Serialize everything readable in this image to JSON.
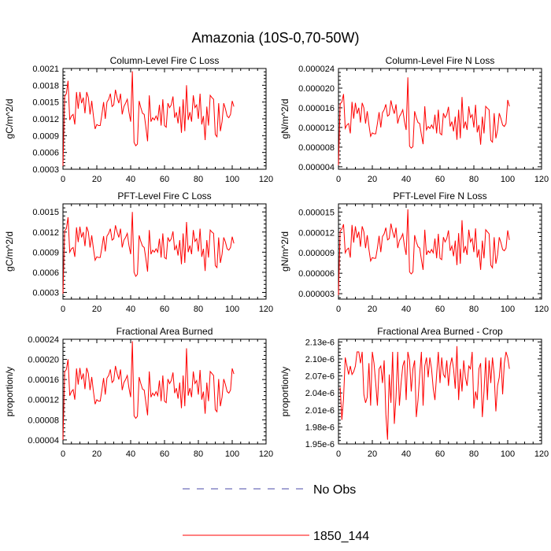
{
  "figure": {
    "title": "Amazonia (10S-0,70-50W)"
  },
  "legend": {
    "obs_label": "No Obs",
    "model_label": "1850_144",
    "obs_color": "#4a4aa8",
    "model_color": "#ff0000"
  },
  "chart_data": [
    {
      "type": "line",
      "title": "Column-Level Fire C Loss",
      "ylabel": "gC/m^2/d",
      "xlim": [
        0,
        120
      ],
      "ylim": [
        0.0003,
        0.0021
      ],
      "xticks": [
        0,
        20,
        40,
        60,
        80,
        100,
        120
      ],
      "yticks": [
        0.0003,
        0.0006,
        0.0009,
        0.0012,
        0.0015,
        0.0018,
        0.0021
      ],
      "ytick_labels": [
        "0.0003",
        "0.0006",
        "0.0009",
        "0.0012",
        "0.0015",
        "0.0018",
        "0.0021"
      ],
      "series": [
        {
          "name": "1850_144",
          "color": "#ff0000",
          "x_start": 0,
          "values": [
            0.00036,
            0.0016,
            0.00165,
            0.00188,
            0.00118,
            0.00125,
            0.00128,
            0.0011,
            0.00168,
            0.00138,
            0.00168,
            0.00148,
            0.00158,
            0.0013,
            0.00168,
            0.00158,
            0.00128,
            0.00152,
            0.00125,
            0.00102,
            0.0011,
            0.00108,
            0.00108,
            0.00128,
            0.0015,
            0.0012,
            0.0015,
            0.00155,
            0.00165,
            0.00142,
            0.00145,
            0.00172,
            0.00158,
            0.00148,
            0.00165,
            0.00128,
            0.00142,
            0.00148,
            0.00155,
            0.00132,
            0.00115,
            0.00205,
            0.00078,
            0.00072,
            0.00075,
            0.00152,
            0.0014,
            0.0013,
            0.00128,
            0.00105,
            0.0008,
            0.00162,
            0.00115,
            0.00122,
            0.00118,
            0.00125,
            0.00118,
            0.00145,
            0.00108,
            0.00155,
            0.00108,
            0.00105,
            0.00148,
            0.0014,
            0.00145,
            0.0016,
            0.00122,
            0.00132,
            0.00112,
            0.00142,
            0.00095,
            0.00155,
            0.00098,
            0.0018,
            0.00118,
            0.00132,
            0.00115,
            0.00162,
            0.0014,
            0.00145,
            0.0012,
            0.00165,
            0.0011,
            0.00125,
            0.00082,
            0.00142,
            0.00108,
            0.00162,
            0.00158,
            0.00155,
            0.00092,
            0.00088,
            0.00148,
            0.00098,
            0.00115,
            0.00148,
            0.00138,
            0.00125,
            0.00122,
            0.00128,
            0.00152,
            0.00142
          ]
        }
      ]
    },
    {
      "type": "line",
      "title": "Column-Level Fire N Loss",
      "ylabel": "gN/m^2/d",
      "xlim": [
        0,
        120
      ],
      "ylim": [
        3.5e-06,
        2.4e-05
      ],
      "xticks": [
        0,
        20,
        40,
        60,
        80,
        100,
        120
      ],
      "yticks": [
        4e-06,
        8e-06,
        1.2e-05,
        1.6e-05,
        2e-05,
        2.4e-05
      ],
      "ytick_labels": [
        "0.000004",
        "0.000008",
        "0.000012",
        "0.000016",
        "0.000020",
        "0.000024"
      ],
      "series": [
        {
          "name": "1850_144",
          "color": "#ff0000",
          "x_start": 0,
          "values": [
            4.3e-06,
            1.68e-05,
            1.72e-05,
            1.88e-05,
            1.18e-05,
            1.25e-05,
            1.28e-05,
            1.08e-05,
            1.72e-05,
            1.38e-05,
            1.7e-05,
            1.48e-05,
            1.6e-05,
            1.3e-05,
            1.7e-05,
            1.6e-05,
            1.28e-05,
            1.53e-05,
            1.25e-05,
            1.02e-05,
            1.09e-05,
            1.07e-05,
            1.07e-05,
            1.28e-05,
            1.51e-05,
            1.2e-05,
            1.5e-05,
            1.56e-05,
            1.67e-05,
            1.43e-05,
            1.46e-05,
            1.75e-05,
            1.59e-05,
            1.48e-05,
            1.67e-05,
            1.28e-05,
            1.42e-05,
            1.48e-05,
            1.56e-05,
            1.32e-05,
            1.15e-05,
            2.22e-05,
            8.2e-06,
            7.8e-06,
            8.1e-06,
            1.53e-05,
            1.4e-05,
            1.3e-05,
            1.28e-05,
            1.05e-05,
            8.6e-06,
            1.63e-05,
            1.15e-05,
            1.22e-05,
            1.18e-05,
            1.25e-05,
            1.18e-05,
            1.46e-05,
            1.08e-05,
            1.56e-05,
            1.08e-05,
            1.05e-05,
            1.49e-05,
            1.4e-05,
            1.46e-05,
            1.62e-05,
            1.22e-05,
            1.32e-05,
            1.12e-05,
            1.42e-05,
            9.5e-06,
            1.56e-05,
            9.8e-06,
            1.82e-05,
            1.18e-05,
            1.32e-05,
            1.15e-05,
            1.63e-05,
            1.4e-05,
            1.46e-05,
            1.2e-05,
            1.66e-05,
            1.1e-05,
            1.25e-05,
            8.5e-06,
            1.42e-05,
            1.08e-05,
            1.63e-05,
            1.59e-05,
            1.56e-05,
            9.4e-06,
            9e-06,
            1.49e-05,
            9.8e-06,
            1.15e-05,
            1.49e-05,
            1.38e-05,
            1.25e-05,
            1.22e-05,
            1.28e-05,
            1.76e-05,
            1.63e-05
          ]
        }
      ]
    },
    {
      "type": "line",
      "title": "PFT-Level Fire C Loss",
      "ylabel": "gC/m^2/d",
      "xlim": [
        0,
        120
      ],
      "ylim": [
        0.0002,
        0.00162
      ],
      "xticks": [
        0,
        20,
        40,
        60,
        80,
        100,
        120
      ],
      "yticks": [
        0.0003,
        0.0006,
        0.0009,
        0.0012,
        0.0015
      ],
      "ytick_labels": [
        "0.0003",
        "0.0006",
        "0.0009",
        "0.0012",
        "0.0015"
      ],
      "series": [
        {
          "name": "1850_144",
          "color": "#ff0000",
          "x_start": 0,
          "values": [
            0.00028,
            0.00122,
            0.00125,
            0.00142,
            0.0009,
            0.00095,
            0.00097,
            0.00083,
            0.00127,
            0.00105,
            0.00128,
            0.00112,
            0.0012,
            0.00099,
            0.00128,
            0.0012,
            0.00097,
            0.00115,
            0.00095,
            0.00078,
            0.00083,
            0.00082,
            0.00082,
            0.00097,
            0.00114,
            0.00091,
            0.00114,
            0.00118,
            0.00125,
            0.00108,
            0.0011,
            0.0013,
            0.0012,
            0.00112,
            0.00125,
            0.00097,
            0.00108,
            0.00112,
            0.00118,
            0.001,
            0.00087,
            0.0015,
            0.0006,
            0.00054,
            0.00057,
            0.00115,
            0.00106,
            0.00099,
            0.00097,
            0.0008,
            0.00061,
            0.00123,
            0.00087,
            0.00093,
            0.0009,
            0.00095,
            0.0009,
            0.0011,
            0.00082,
            0.00118,
            0.00082,
            0.0008,
            0.00112,
            0.00106,
            0.0011,
            0.00121,
            0.00093,
            0.001,
            0.00085,
            0.00108,
            0.00072,
            0.00118,
            0.00074,
            0.00135,
            0.0009,
            0.001,
            0.00087,
            0.00123,
            0.00106,
            0.0011,
            0.00091,
            0.00125,
            0.00083,
            0.00095,
            0.00062,
            0.00108,
            0.00082,
            0.00123,
            0.0012,
            0.00118,
            0.0007,
            0.00067,
            0.00112,
            0.00074,
            0.00087,
            0.00112,
            0.00105,
            0.00095,
            0.00093,
            0.00097,
            0.00113,
            0.00103
          ]
        }
      ]
    },
    {
      "type": "line",
      "title": "PFT-Level Fire N Loss",
      "ylabel": "gN/m^2/d",
      "xlim": [
        0,
        120
      ],
      "ylim": [
        2.2e-06,
        1.62e-05
      ],
      "xticks": [
        0,
        20,
        40,
        60,
        80,
        100,
        120
      ],
      "yticks": [
        3e-06,
        6e-06,
        9e-06,
        1.2e-05,
        1.5e-05
      ],
      "ytick_labels": [
        "0.000003",
        "0.000006",
        "0.000009",
        "0.000012",
        "0.000015"
      ],
      "series": [
        {
          "name": "1850_144",
          "color": "#ff0000",
          "x_start": 0,
          "values": [
            2.8e-06,
            1.22e-05,
            1.25e-05,
            1.32e-05,
            9e-06,
            9.5e-06,
            9.7e-06,
            8.3e-06,
            1.31e-05,
            1.05e-05,
            1.29e-05,
            1.12e-05,
            1.21e-05,
            9.9e-06,
            1.29e-05,
            1.21e-05,
            9.7e-06,
            1.16e-05,
            9.5e-06,
            7.8e-06,
            8.3e-06,
            8.2e-06,
            8.2e-06,
            9.7e-06,
            1.15e-05,
            9.1e-06,
            1.14e-05,
            1.18e-05,
            1.27e-05,
            1.09e-05,
            1.11e-05,
            1.33e-05,
            1.21e-05,
            1.12e-05,
            1.27e-05,
            9.7e-06,
            1.08e-05,
            1.12e-05,
            1.18e-05,
            1e-05,
            8.7e-06,
            1.54e-05,
            6.2e-06,
            5.9e-06,
            6.2e-06,
            1.16e-05,
            1.06e-05,
            9.9e-06,
            9.7e-06,
            8e-06,
            6.5e-06,
            1.24e-05,
            8.7e-06,
            9.3e-06,
            9e-06,
            9.5e-06,
            9e-06,
            1.11e-05,
            8.2e-06,
            1.18e-05,
            8.2e-06,
            8e-06,
            1.13e-05,
            1.06e-05,
            1.11e-05,
            1.23e-05,
            9.3e-06,
            1e-05,
            8.5e-06,
            1.08e-05,
            7.2e-06,
            1.19e-05,
            7.4e-06,
            1.38e-05,
            9e-06,
            1e-05,
            8.7e-06,
            1.24e-05,
            1.06e-05,
            1.11e-05,
            9.1e-06,
            1.26e-05,
            8.3e-06,
            9.5e-06,
            6.5e-06,
            1.08e-05,
            8.2e-06,
            1.24e-05,
            1.21e-05,
            1.18e-05,
            7.2e-06,
            6.8e-06,
            1.13e-05,
            7.4e-06,
            8.7e-06,
            1.13e-05,
            1.05e-05,
            9.5e-06,
            9.3e-06,
            9.7e-06,
            1.23e-05,
            1.09e-05
          ]
        }
      ]
    },
    {
      "type": "line",
      "title": "Fractional Area Burned",
      "ylabel": "proportion/y",
      "xlim": [
        0,
        120
      ],
      "ylim": [
        3.2e-05,
        0.00024
      ],
      "xticks": [
        0,
        20,
        40,
        60,
        80,
        100,
        120
      ],
      "yticks": [
        4e-05,
        8e-05,
        0.00012,
        0.00016,
        0.0002,
        0.00024
      ],
      "ytick_labels": [
        "0.00004",
        "0.00008",
        "0.00012",
        "0.00016",
        "0.00020",
        "0.00024"
      ],
      "series": [
        {
          "name": "1850_144",
          "color": "#ff0000",
          "x_start": 0,
          "values": [
            4e-05,
            0.000175,
            0.00018,
            0.0002,
            0.000128,
            0.000136,
            0.00014,
            0.00012,
            0.000182,
            0.00015,
            0.000183,
            0.00016,
            0.000172,
            0.000141,
            0.000183,
            0.000172,
            0.000139,
            0.000165,
            0.000136,
            0.000111,
            0.00012,
            0.000117,
            0.000117,
            0.000139,
            0.000163,
            0.00013,
            0.000163,
            0.000168,
            0.00018,
            0.000154,
            0.000158,
            0.000187,
            0.000172,
            0.00016,
            0.00018,
            0.000139,
            0.000154,
            0.00016,
            0.000168,
            0.000143,
            0.000125,
            0.000236,
            8.8e-05,
            8.3e-05,
            8.7e-05,
            0.000165,
            0.000152,
            0.000141,
            0.000139,
            0.000114,
            8.9e-05,
            0.000176,
            0.000125,
            0.000133,
            0.000128,
            0.000136,
            0.000128,
            0.000158,
            0.000117,
            0.000168,
            0.000117,
            0.000114,
            0.000161,
            0.000152,
            0.000158,
            0.000174,
            0.000133,
            0.000143,
            0.000122,
            0.000154,
            0.000103,
            0.000168,
            0.000107,
            0.000222,
            0.000128,
            0.000143,
            0.000125,
            0.000176,
            0.000152,
            0.000158,
            0.00013,
            0.000179,
            0.00012,
            0.000136,
            9.2e-05,
            0.000154,
            0.000117,
            0.000176,
            0.000172,
            0.000168,
            0.0001,
            9.6e-05,
            0.000161,
            0.000107,
            0.000125,
            0.000161,
            0.00015,
            0.000136,
            0.000133,
            0.000139,
            0.000182,
            0.000171
          ]
        }
      ]
    },
    {
      "type": "line",
      "title": "Fractional Area Burned - Crop",
      "ylabel": "proportion/y",
      "xlim": [
        0,
        120
      ],
      "ylim": [
        1.95e-06,
        2.1347e-06
      ],
      "xticks": [
        0,
        20,
        40,
        60,
        80,
        100,
        120
      ],
      "yticks": [
        1.95e-06,
        1.98e-06,
        2.01e-06,
        2.04e-06,
        2.07e-06,
        2.1e-06,
        2.13e-06
      ],
      "ytick_labels": [
        "1.95e-6",
        "1.98e-6",
        "2.01e-6",
        "2.04e-6",
        "2.07e-6",
        "2.10e-6",
        "2.13e-6"
      ],
      "series": [
        {
          "name": "1850_144",
          "color": "#ff0000",
          "x_start": 1,
          "values": [
            2.05e-06,
            1.9925e-06,
            2.03e-06,
            2.1025e-06,
            2.0875e-06,
            2.0725e-06,
            2.0875e-06,
            2.0725e-06,
            2.0775e-06,
            2.0875e-06,
            2.1125e-06,
            2.1125e-06,
            2.0925e-06,
            2.1125e-06,
            2.0375e-06,
            2.0225e-06,
            2.0325e-06,
            2.0925e-06,
            2.0175e-06,
            2.1125e-06,
            2.0925e-06,
            2.0575e-06,
            2.0175e-06,
            2.0825e-06,
            2.0875e-06,
            2.0575e-06,
            2.0975e-06,
            2.0025e-06,
            1.9575e-06,
            2.0725e-06,
            2.0225e-06,
            2.1125e-06,
            1.9855e-06,
            2.0325e-06,
            2.1125e-06,
            2.0175e-06,
            2.0575e-06,
            2.0875e-06,
            2.0975e-06,
            2.0275e-06,
            2.1125e-06,
            2.0975e-06,
            2.0425e-06,
            2.0825e-06,
            2.0975e-06,
            1.9975e-06,
            2.0275e-06,
            2.0725e-06,
            2.1125e-06,
            2.0175e-06,
            2.0875e-06,
            2.1025e-06,
            2.0675e-06,
            2.1025e-06,
            2.0825e-06,
            2.0475e-06,
            2.0275e-06,
            2.0725e-06,
            2.1125e-06,
            2.0575e-06,
            2.1025e-06,
            2.0725e-06,
            2.0675e-06,
            2.0975e-06,
            2.0525e-06,
            2.0875e-06,
            2.1025e-06,
            2.0825e-06,
            2.0475e-06,
            2.1225e-06,
            2.0275e-06,
            2.0825e-06,
            2.0425e-06,
            2.0975e-06,
            2.0675e-06,
            2.0525e-06,
            2.0875e-06,
            2.0825e-06,
            2.1125e-06,
            2.0125e-06,
            2.0425e-06,
            2.0275e-06,
            2.0825e-06,
            2.0925e-06,
            1.9975e-06,
            2.0425e-06,
            2.1025e-06,
            2.0275e-06,
            2.0975e-06,
            2.0575e-06,
            2.1025e-06,
            2.0725e-06,
            2.0075e-06,
            2.0525e-06,
            2.0675e-06,
            2.1025e-06,
            2.0375e-06,
            2.0925e-06,
            2.1125e-06,
            2.1025e-06,
            2.0825e-06
          ]
        }
      ]
    }
  ]
}
